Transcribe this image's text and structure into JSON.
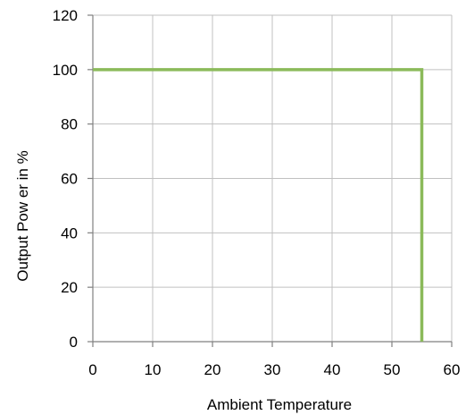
{
  "chart_data": {
    "type": "line",
    "title": "",
    "xlabel": "Ambient Temperature",
    "ylabel": "Output Pow er in %",
    "xlim": [
      0,
      60
    ],
    "ylim": [
      0,
      120
    ],
    "xticks": [
      0,
      10,
      20,
      30,
      40,
      50,
      60
    ],
    "yticks": [
      0,
      20,
      40,
      60,
      80,
      100,
      120
    ],
    "grid": true,
    "legend": "none",
    "series": [
      {
        "x": [
          0,
          55,
          55
        ],
        "y": [
          100,
          100,
          0
        ],
        "color": "#8bba5a"
      }
    ],
    "colors": {
      "grid": "#c0c0c0",
      "axis": "#808080",
      "series": "#8bba5a"
    }
  }
}
